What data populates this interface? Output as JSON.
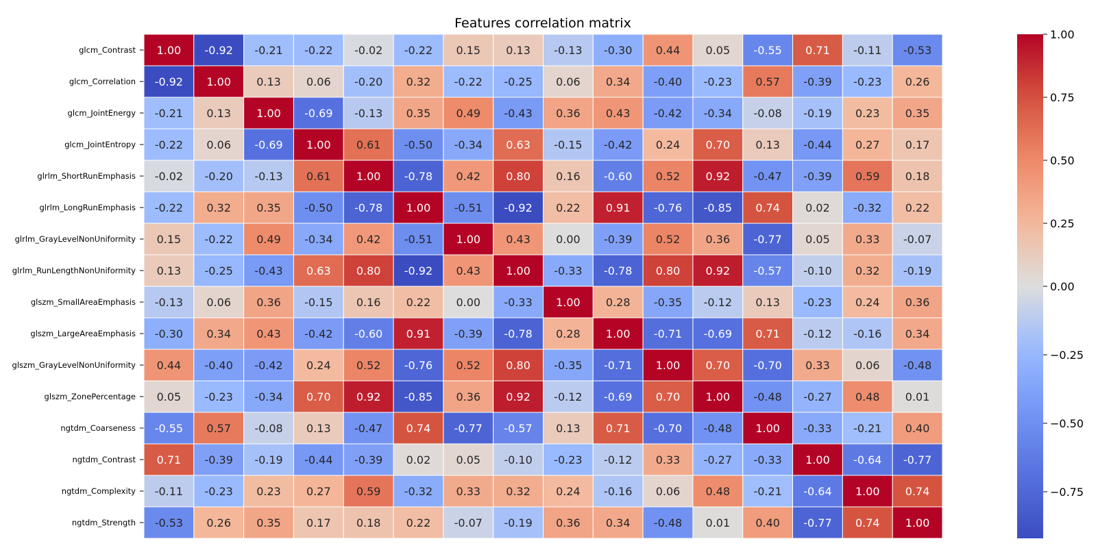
{
  "chart_data": {
    "type": "heatmap",
    "title": "Features correlation matrix",
    "row_labels": [
      "glcm_Contrast",
      "glcm_Correlation",
      "glcm_JointEnergy",
      "glcm_JointEntropy",
      "glrlm_ShortRunEmphasis",
      "glrlm_LongRunEmphasis",
      "glrlm_GrayLevelNonUniformity",
      "glrlm_RunLengthNonUniformity",
      "glszm_SmallAreaEmphasis",
      "glszm_LargeAreaEmphasis",
      "glszm_GrayLevelNonUniformity",
      "glszm_ZonePercentage",
      "ngtdm_Coarseness",
      "ngtdm_Contrast",
      "ngtdm_Complexity",
      "ngtdm_Strength"
    ],
    "values": [
      [
        1.0,
        -0.92,
        -0.21,
        -0.22,
        -0.02,
        -0.22,
        0.15,
        0.13,
        -0.13,
        -0.3,
        0.44,
        0.05,
        -0.55,
        0.71,
        -0.11,
        -0.53
      ],
      [
        -0.92,
        1.0,
        0.13,
        0.06,
        -0.2,
        0.32,
        -0.22,
        -0.25,
        0.06,
        0.34,
        -0.4,
        -0.23,
        0.57,
        -0.39,
        -0.23,
        0.26
      ],
      [
        -0.21,
        0.13,
        1.0,
        -0.69,
        -0.13,
        0.35,
        0.49,
        -0.43,
        0.36,
        0.43,
        -0.42,
        -0.34,
        -0.08,
        -0.19,
        0.23,
        0.35
      ],
      [
        -0.22,
        0.06,
        -0.69,
        1.0,
        0.61,
        -0.5,
        -0.34,
        0.63,
        -0.15,
        -0.42,
        0.24,
        0.7,
        0.13,
        -0.44,
        0.27,
        0.17
      ],
      [
        -0.02,
        -0.2,
        -0.13,
        0.61,
        1.0,
        -0.78,
        0.42,
        0.8,
        0.16,
        -0.6,
        0.52,
        0.92,
        -0.47,
        -0.39,
        0.59,
        0.18
      ],
      [
        -0.22,
        0.32,
        0.35,
        -0.5,
        -0.78,
        1.0,
        -0.51,
        -0.92,
        0.22,
        0.91,
        -0.76,
        -0.85,
        0.74,
        0.02,
        -0.32,
        0.22
      ],
      [
        0.15,
        -0.22,
        0.49,
        -0.34,
        0.42,
        -0.51,
        1.0,
        0.43,
        0.0,
        -0.39,
        0.52,
        0.36,
        -0.77,
        0.05,
        0.33,
        -0.07
      ],
      [
        0.13,
        -0.25,
        -0.43,
        0.63,
        0.8,
        -0.92,
        0.43,
        1.0,
        -0.33,
        -0.78,
        0.8,
        0.92,
        -0.57,
        -0.1,
        0.32,
        -0.19
      ],
      [
        -0.13,
        0.06,
        0.36,
        -0.15,
        0.16,
        0.22,
        0.0,
        -0.33,
        1.0,
        0.28,
        -0.35,
        -0.12,
        0.13,
        -0.23,
        0.24,
        0.36
      ],
      [
        -0.3,
        0.34,
        0.43,
        -0.42,
        -0.6,
        0.91,
        -0.39,
        -0.78,
        0.28,
        1.0,
        -0.71,
        -0.69,
        0.71,
        -0.12,
        -0.16,
        0.34
      ],
      [
        0.44,
        -0.4,
        -0.42,
        0.24,
        0.52,
        -0.76,
        0.52,
        0.8,
        -0.35,
        -0.71,
        1.0,
        0.7,
        -0.7,
        0.33,
        0.06,
        -0.48
      ],
      [
        0.05,
        -0.23,
        -0.34,
        0.7,
        0.92,
        -0.85,
        0.36,
        0.92,
        -0.12,
        -0.69,
        0.7,
        1.0,
        -0.48,
        -0.27,
        0.48,
        0.01
      ],
      [
        -0.55,
        0.57,
        -0.08,
        0.13,
        -0.47,
        0.74,
        -0.77,
        -0.57,
        0.13,
        0.71,
        -0.7,
        -0.48,
        1.0,
        -0.33,
        -0.21,
        0.4
      ],
      [
        0.71,
        -0.39,
        -0.19,
        -0.44,
        -0.39,
        0.02,
        0.05,
        -0.1,
        -0.23,
        -0.12,
        0.33,
        -0.27,
        -0.33,
        1.0,
        -0.64,
        -0.77
      ],
      [
        -0.11,
        -0.23,
        0.23,
        0.27,
        0.59,
        -0.32,
        0.33,
        0.32,
        0.24,
        -0.16,
        0.06,
        0.48,
        -0.21,
        -0.64,
        1.0,
        0.74
      ],
      [
        -0.53,
        0.26,
        0.35,
        0.17,
        0.18,
        0.22,
        -0.07,
        -0.19,
        0.36,
        0.34,
        -0.48,
        0.01,
        0.4,
        -0.77,
        0.74,
        1.0
      ]
    ],
    "colormap": "coolwarm",
    "color_range": [
      -0.92,
      1.0
    ],
    "colorbar_ticks": [
      "1.00",
      "0.75",
      "0.50",
      "0.25",
      "0.00",
      "−0.25",
      "−0.50",
      "−0.75"
    ],
    "colorbar_tick_values": [
      1.0,
      0.75,
      0.5,
      0.25,
      0.0,
      -0.25,
      -0.5,
      -0.75
    ],
    "colorbar_placement": "right"
  }
}
